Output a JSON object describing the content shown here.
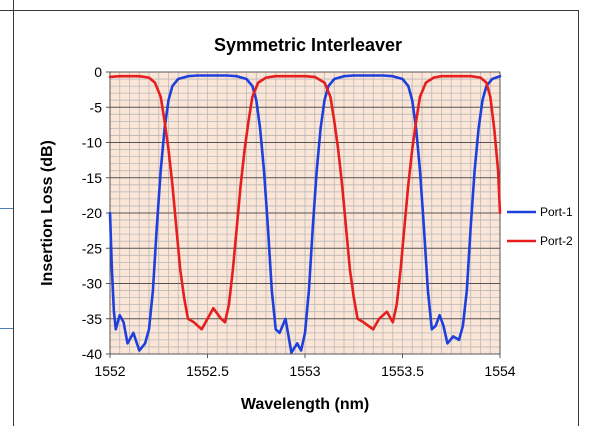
{
  "colors": {
    "plot_background": "#fbe5d6",
    "grid": "#b9b9b9",
    "port1": "#1f3fdc",
    "port2": "#e61e1e",
    "text": "#000000"
  },
  "chart_data": {
    "type": "line",
    "title": "Symmetric Interleaver",
    "xlabel": "Wavelength (nm)",
    "ylabel": "Insertion Loss (dB)",
    "xlim": [
      1552,
      1554
    ],
    "ylim": [
      -40,
      0
    ],
    "x_ticks": [
      "1552",
      "1552.5",
      "1553",
      "1553.5",
      "1554"
    ],
    "y_ticks": [
      "0",
      "-5",
      "-10",
      "-15",
      "-20",
      "-25",
      "-30",
      "-35",
      "-40"
    ],
    "grid": true,
    "legend_position": "right",
    "series": [
      {
        "name": "Port-1",
        "points": [
          [
            1552.0,
            -20
          ],
          [
            1552.01,
            -28
          ],
          [
            1552.02,
            -34
          ],
          [
            1552.03,
            -36.5
          ],
          [
            1552.05,
            -34.5
          ],
          [
            1552.07,
            -35.5
          ],
          [
            1552.09,
            -38.5
          ],
          [
            1552.12,
            -37
          ],
          [
            1552.15,
            -39.5
          ],
          [
            1552.18,
            -38.5
          ],
          [
            1552.2,
            -36.5
          ],
          [
            1552.22,
            -31
          ],
          [
            1552.24,
            -22
          ],
          [
            1552.26,
            -14
          ],
          [
            1552.28,
            -8
          ],
          [
            1552.3,
            -4
          ],
          [
            1552.32,
            -2
          ],
          [
            1552.35,
            -1
          ],
          [
            1552.4,
            -0.6
          ],
          [
            1552.45,
            -0.5
          ],
          [
            1552.5,
            -0.5
          ],
          [
            1552.55,
            -0.5
          ],
          [
            1552.6,
            -0.5
          ],
          [
            1552.65,
            -0.6
          ],
          [
            1552.7,
            -1
          ],
          [
            1552.73,
            -2
          ],
          [
            1552.75,
            -4
          ],
          [
            1552.77,
            -8
          ],
          [
            1552.79,
            -14
          ],
          [
            1552.81,
            -22
          ],
          [
            1552.83,
            -31
          ],
          [
            1552.85,
            -36.5
          ],
          [
            1552.87,
            -37
          ],
          [
            1552.9,
            -35
          ],
          [
            1552.93,
            -39.8
          ],
          [
            1552.96,
            -38.5
          ],
          [
            1552.98,
            -39.5
          ],
          [
            1553.0,
            -37
          ],
          [
            1553.02,
            -31
          ],
          [
            1553.04,
            -22
          ],
          [
            1553.06,
            -14
          ],
          [
            1553.08,
            -8
          ],
          [
            1553.1,
            -4
          ],
          [
            1553.12,
            -2
          ],
          [
            1553.15,
            -1
          ],
          [
            1553.2,
            -0.6
          ],
          [
            1553.25,
            -0.5
          ],
          [
            1553.3,
            -0.5
          ],
          [
            1553.35,
            -0.5
          ],
          [
            1553.4,
            -0.5
          ],
          [
            1553.45,
            -0.6
          ],
          [
            1553.5,
            -1
          ],
          [
            1553.53,
            -2
          ],
          [
            1553.55,
            -4
          ],
          [
            1553.57,
            -8
          ],
          [
            1553.59,
            -14
          ],
          [
            1553.61,
            -22
          ],
          [
            1553.63,
            -31
          ],
          [
            1553.65,
            -36.5
          ],
          [
            1553.67,
            -36
          ],
          [
            1553.69,
            -34.5
          ],
          [
            1553.71,
            -36
          ],
          [
            1553.73,
            -38.5
          ],
          [
            1553.76,
            -37.5
          ],
          [
            1553.79,
            -38
          ],
          [
            1553.81,
            -36
          ],
          [
            1553.83,
            -31
          ],
          [
            1553.85,
            -22
          ],
          [
            1553.87,
            -14
          ],
          [
            1553.89,
            -8
          ],
          [
            1553.91,
            -4
          ],
          [
            1553.93,
            -2
          ],
          [
            1553.96,
            -1
          ],
          [
            1554.0,
            -0.6
          ]
        ]
      },
      {
        "name": "Port-2",
        "points": [
          [
            1552.0,
            -0.7
          ],
          [
            1552.05,
            -0.6
          ],
          [
            1552.1,
            -0.6
          ],
          [
            1552.15,
            -0.6
          ],
          [
            1552.2,
            -0.8
          ],
          [
            1552.23,
            -1.5
          ],
          [
            1552.26,
            -3.5
          ],
          [
            1552.28,
            -7
          ],
          [
            1552.3,
            -11
          ],
          [
            1552.32,
            -16
          ],
          [
            1552.34,
            -22
          ],
          [
            1552.36,
            -28
          ],
          [
            1552.38,
            -32
          ],
          [
            1552.4,
            -35
          ],
          [
            1552.43,
            -35.5
          ],
          [
            1552.47,
            -36.5
          ],
          [
            1552.5,
            -35
          ],
          [
            1552.53,
            -33.5
          ],
          [
            1552.57,
            -35
          ],
          [
            1552.59,
            -35.5
          ],
          [
            1552.61,
            -33
          ],
          [
            1552.63,
            -28
          ],
          [
            1552.65,
            -22
          ],
          [
            1552.67,
            -16
          ],
          [
            1552.69,
            -11
          ],
          [
            1552.71,
            -7
          ],
          [
            1552.73,
            -3.5
          ],
          [
            1552.76,
            -1.5
          ],
          [
            1552.8,
            -0.8
          ],
          [
            1552.85,
            -0.6
          ],
          [
            1552.9,
            -0.6
          ],
          [
            1552.95,
            -0.6
          ],
          [
            1553.0,
            -0.6
          ],
          [
            1553.05,
            -0.7
          ],
          [
            1553.1,
            -1.5
          ],
          [
            1553.13,
            -3.5
          ],
          [
            1553.15,
            -7
          ],
          [
            1553.17,
            -11
          ],
          [
            1553.19,
            -16
          ],
          [
            1553.21,
            -22
          ],
          [
            1553.23,
            -28
          ],
          [
            1553.25,
            -32
          ],
          [
            1553.27,
            -35
          ],
          [
            1553.3,
            -35.5
          ],
          [
            1553.35,
            -36.5
          ],
          [
            1553.38,
            -35
          ],
          [
            1553.42,
            -34
          ],
          [
            1553.45,
            -35.5
          ],
          [
            1553.47,
            -33
          ],
          [
            1553.49,
            -28
          ],
          [
            1553.51,
            -22
          ],
          [
            1553.53,
            -16
          ],
          [
            1553.55,
            -11
          ],
          [
            1553.57,
            -7
          ],
          [
            1553.59,
            -3.5
          ],
          [
            1553.62,
            -1.5
          ],
          [
            1553.66,
            -0.8
          ],
          [
            1553.7,
            -0.6
          ],
          [
            1553.75,
            -0.6
          ],
          [
            1553.8,
            -0.6
          ],
          [
            1553.85,
            -0.6
          ],
          [
            1553.9,
            -0.8
          ],
          [
            1553.93,
            -1.5
          ],
          [
            1553.95,
            -3.5
          ],
          [
            1553.97,
            -8
          ],
          [
            1553.99,
            -14
          ],
          [
            1554.0,
            -20
          ]
        ]
      }
    ]
  }
}
